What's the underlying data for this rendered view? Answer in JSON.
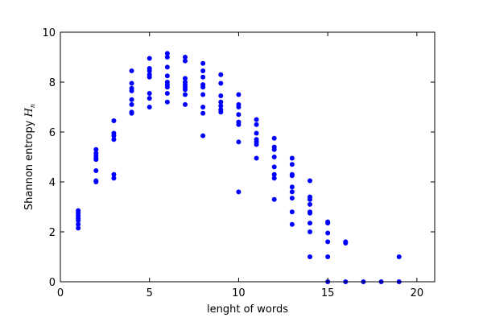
{
  "chart_data": {
    "type": "scatter",
    "xlabel": "lenght of words",
    "ylabel_main": "Shannon entropy ",
    "ylabel_symbol": "H",
    "ylabel_subscript": "n",
    "xlim": [
      0,
      21
    ],
    "ylim": [
      0,
      10
    ],
    "xticks": [
      0,
      5,
      10,
      15,
      20
    ],
    "yticks": [
      0,
      2,
      4,
      6,
      8,
      10
    ],
    "grid": false,
    "marker_color": "#0000ff",
    "series": [
      {
        "points": [
          [
            1,
            2.85
          ],
          [
            1,
            2.75
          ],
          [
            1,
            2.65
          ],
          [
            1,
            2.55
          ],
          [
            1,
            2.45
          ],
          [
            1,
            2.3
          ],
          [
            1,
            2.15
          ],
          [
            2,
            5.3
          ],
          [
            2,
            5.15
          ],
          [
            2,
            5.05
          ],
          [
            2,
            4.95
          ],
          [
            2,
            4.9
          ],
          [
            2,
            4.45
          ],
          [
            2,
            4.05
          ],
          [
            2,
            4.0
          ],
          [
            3,
            6.45
          ],
          [
            3,
            5.95
          ],
          [
            3,
            5.85
          ],
          [
            3,
            5.7
          ],
          [
            3,
            4.3
          ],
          [
            3,
            4.15
          ],
          [
            4,
            8.45
          ],
          [
            4,
            7.95
          ],
          [
            4,
            7.75
          ],
          [
            4,
            7.65
          ],
          [
            4,
            7.3
          ],
          [
            4,
            7.1
          ],
          [
            4,
            6.8
          ],
          [
            4,
            6.75
          ],
          [
            5,
            8.95
          ],
          [
            5,
            8.55
          ],
          [
            5,
            8.45
          ],
          [
            5,
            8.3
          ],
          [
            5,
            8.2
          ],
          [
            5,
            7.55
          ],
          [
            5,
            7.35
          ],
          [
            5,
            7.0
          ],
          [
            6,
            9.15
          ],
          [
            6,
            9.0
          ],
          [
            6,
            8.6
          ],
          [
            6,
            8.25
          ],
          [
            6,
            8.0
          ],
          [
            6,
            7.9
          ],
          [
            6,
            7.8
          ],
          [
            6,
            7.55
          ],
          [
            6,
            7.2
          ],
          [
            7,
            9.0
          ],
          [
            7,
            8.85
          ],
          [
            7,
            8.15
          ],
          [
            7,
            8.0
          ],
          [
            7,
            7.9
          ],
          [
            7,
            7.8
          ],
          [
            7,
            7.7
          ],
          [
            7,
            7.5
          ],
          [
            7,
            7.1
          ],
          [
            8,
            8.75
          ],
          [
            8,
            8.45
          ],
          [
            8,
            8.2
          ],
          [
            8,
            7.9
          ],
          [
            8,
            7.8
          ],
          [
            8,
            7.5
          ],
          [
            8,
            7.0
          ],
          [
            8,
            6.75
          ],
          [
            8,
            5.85
          ],
          [
            9,
            8.3
          ],
          [
            9,
            7.95
          ],
          [
            9,
            7.45
          ],
          [
            9,
            7.2
          ],
          [
            9,
            7.05
          ],
          [
            9,
            6.9
          ],
          [
            9,
            6.8
          ],
          [
            10,
            7.5
          ],
          [
            10,
            7.1
          ],
          [
            10,
            7.0
          ],
          [
            10,
            6.7
          ],
          [
            10,
            6.4
          ],
          [
            10,
            6.3
          ],
          [
            10,
            5.6
          ],
          [
            10,
            3.6
          ],
          [
            11,
            6.5
          ],
          [
            11,
            6.3
          ],
          [
            11,
            5.95
          ],
          [
            11,
            5.7
          ],
          [
            11,
            5.6
          ],
          [
            11,
            5.5
          ],
          [
            11,
            4.95
          ],
          [
            12,
            5.75
          ],
          [
            12,
            5.4
          ],
          [
            12,
            5.3
          ],
          [
            12,
            5.0
          ],
          [
            12,
            4.6
          ],
          [
            12,
            4.3
          ],
          [
            12,
            4.15
          ],
          [
            12,
            3.3
          ],
          [
            13,
            4.95
          ],
          [
            13,
            4.7
          ],
          [
            13,
            4.3
          ],
          [
            13,
            4.25
          ],
          [
            13,
            3.8
          ],
          [
            13,
            3.6
          ],
          [
            13,
            3.35
          ],
          [
            13,
            2.8
          ],
          [
            13,
            2.3
          ],
          [
            14,
            4.05
          ],
          [
            14,
            3.4
          ],
          [
            14,
            3.3
          ],
          [
            14,
            3.1
          ],
          [
            14,
            2.8
          ],
          [
            14,
            2.75
          ],
          [
            14,
            2.35
          ],
          [
            14,
            2.0
          ],
          [
            14,
            1.0
          ],
          [
            15,
            2.4
          ],
          [
            15,
            2.35
          ],
          [
            15,
            1.95
          ],
          [
            15,
            1.6
          ],
          [
            15,
            1.0
          ],
          [
            15,
            0.0
          ],
          [
            16,
            1.6
          ],
          [
            16,
            1.55
          ],
          [
            16,
            0.0
          ],
          [
            17,
            0.0
          ],
          [
            18,
            0.0
          ],
          [
            19,
            1.0
          ],
          [
            19,
            0.0
          ]
        ]
      }
    ]
  }
}
